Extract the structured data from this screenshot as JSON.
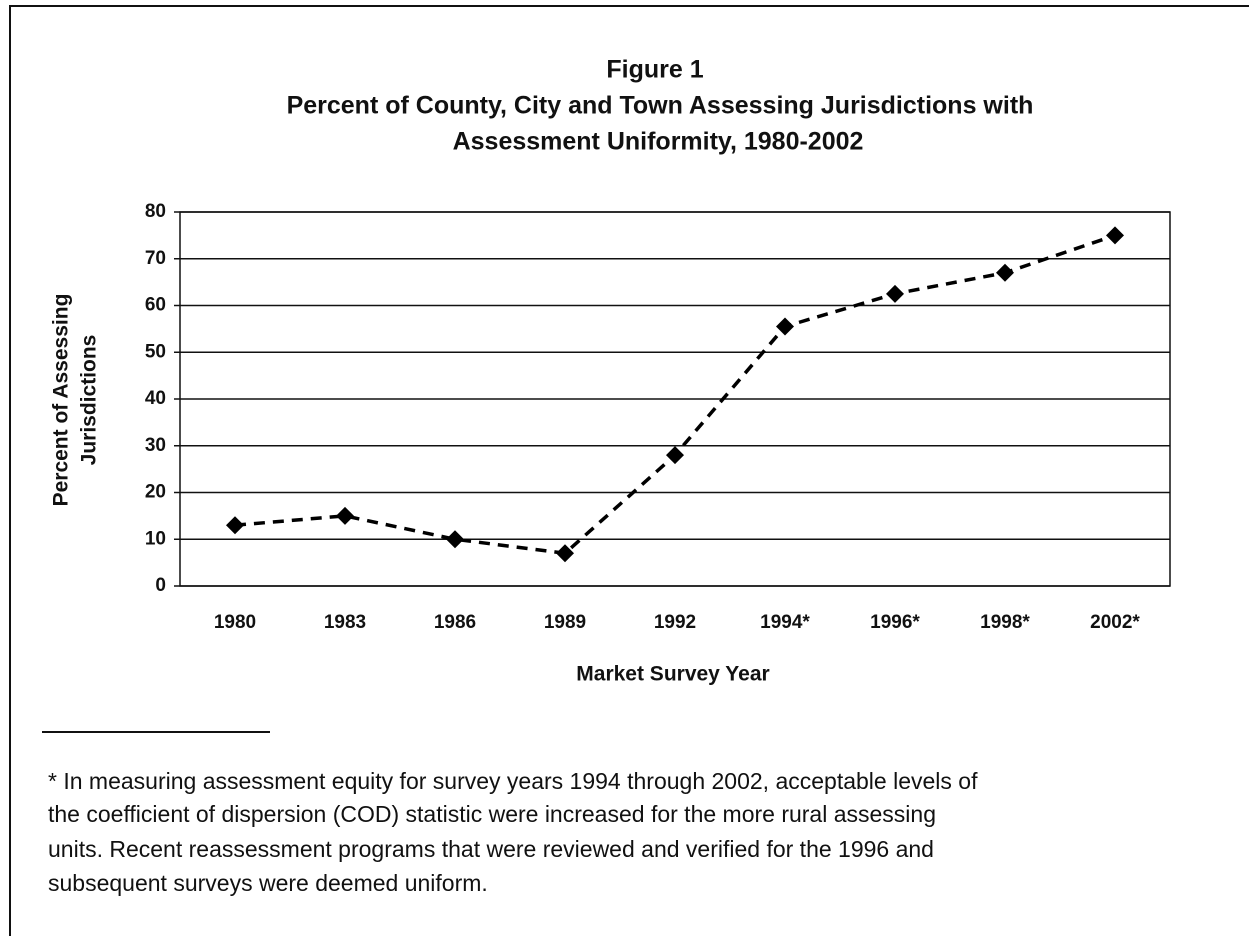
{
  "chart_data": {
    "type": "line",
    "title": "Figure 1",
    "subtitle": [
      "Percent of County, City and Town Assessing Jurisdictions with",
      "Assessment Uniformity, 1980-2002"
    ],
    "ylabel": [
      "Percent of Assessing",
      "Jurisdictions"
    ],
    "xlabel": "Market Survey Year",
    "categories": [
      "1980",
      "1983",
      "1986",
      "1989",
      "1992",
      "1994*",
      "1996*",
      "1998*",
      "2002*"
    ],
    "values": [
      13,
      15,
      10,
      7,
      28,
      55.5,
      62.5,
      67,
      75
    ],
    "color": "#000000",
    "ylim": [
      0,
      80
    ],
    "yticks": [
      0,
      10,
      20,
      30,
      40,
      50,
      60,
      70,
      80
    ],
    "grid": true,
    "note": [
      "* In measuring assessment equity for survey years 1994 through 2002, acceptable levels of",
      "the coefficient of dispersion (COD) statistic were increased for the more rural assessing",
      "units.  Recent reassessment programs that were reviewed and verified for the 1996 and",
      "subsequent surveys were deemed uniform."
    ]
  }
}
